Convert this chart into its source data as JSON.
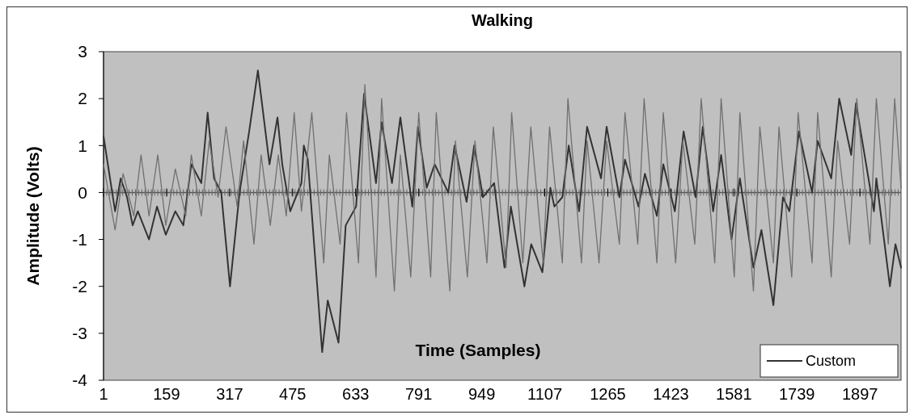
{
  "chart_data": {
    "type": "line",
    "title": "Walking",
    "xlabel": "Time (Samples)",
    "ylabel": "Amplitude (Volts)",
    "xlim": [
      1,
      2000
    ],
    "xticks": [
      1,
      159,
      317,
      475,
      633,
      791,
      949,
      1107,
      1265,
      1423,
      1581,
      1739,
      1897
    ],
    "ylim": [
      -4,
      3
    ],
    "yticks": [
      -4,
      -3,
      -2,
      -1,
      0,
      1,
      2,
      3
    ],
    "legend": "bottom right",
    "marker": "none",
    "line_style": "solid",
    "series": [
      {
        "name": "Custom",
        "color": "#333333",
        "x": [
          1,
          10,
          30,
          44,
          60,
          74,
          87,
          115,
          135,
          157,
          181,
          201,
          221,
          246,
          262,
          278,
          296,
          318,
          342,
          366,
          388,
          417,
          437,
          449,
          469,
          497,
          503,
          513,
          549,
          563,
          590,
          608,
          634,
          654,
          684,
          698,
          724,
          745,
          775,
          789,
          811,
          831,
          865,
          881,
          911,
          930,
          952,
          980,
          1006,
          1022,
          1056,
          1073,
          1101,
          1121,
          1131,
          1151,
          1167,
          1193,
          1213,
          1248,
          1262,
          1294,
          1308,
          1342,
          1358,
          1388,
          1404,
          1433,
          1455,
          1485,
          1503,
          1529,
          1549,
          1575,
          1596,
          1630,
          1650,
          1680,
          1704,
          1720,
          1744,
          1777,
          1791,
          1825,
          1845,
          1875,
          1887,
          1932,
          1938,
          1972,
          1986,
          2000
        ],
        "values": [
          1.2,
          0.7,
          -0.4,
          0.3,
          -0.1,
          -0.7,
          -0.4,
          -1.0,
          -0.3,
          -0.9,
          -0.4,
          -0.7,
          0.6,
          0.2,
          1.7,
          0.3,
          0.0,
          -2.0,
          0.0,
          1.3,
          2.6,
          0.6,
          1.6,
          0.6,
          -0.4,
          0.2,
          1.0,
          0.7,
          -3.4,
          -2.3,
          -3.2,
          -0.7,
          -0.3,
          2.1,
          0.2,
          1.5,
          0.2,
          1.6,
          -0.3,
          1.4,
          0.1,
          0.6,
          0.0,
          1.0,
          -0.2,
          1.0,
          -0.1,
          0.2,
          -1.6,
          -0.3,
          -2.0,
          -1.1,
          -1.7,
          0.1,
          -0.3,
          -0.1,
          1.0,
          -0.4,
          1.4,
          0.3,
          1.4,
          -0.1,
          0.7,
          -0.3,
          0.4,
          -0.5,
          0.6,
          -0.4,
          1.3,
          -0.1,
          1.4,
          -0.4,
          0.8,
          -1.0,
          0.3,
          -1.6,
          -0.8,
          -2.4,
          -0.1,
          -0.4,
          1.3,
          0.0,
          1.1,
          0.3,
          2.0,
          0.8,
          1.9,
          -0.4,
          0.3,
          -2.0,
          -1.1,
          -1.6
        ]
      },
      {
        "color": "#707070",
        "x": [
          1,
          30,
          50,
          77,
          95,
          115,
          137,
          157,
          181,
          207,
          221,
          246,
          266,
          288,
          308,
          336,
          352,
          378,
          396,
          419,
          439,
          459,
          479,
          497,
          523,
          553,
          567,
          594,
          610,
          640,
          656,
          684,
          698,
          730,
          745,
          771,
          791,
          821,
          835,
          869,
          883,
          913,
          932,
          962,
          978,
          1010,
          1024,
          1052,
          1072,
          1103,
          1119,
          1151,
          1165,
          1199,
          1213,
          1243,
          1262,
          1294,
          1308,
          1340,
          1356,
          1388,
          1404,
          1435,
          1453,
          1483,
          1499,
          1533,
          1549,
          1582,
          1596,
          1630,
          1646,
          1680,
          1694,
          1726,
          1742,
          1777,
          1791,
          1825,
          1841,
          1871,
          1889,
          1922,
          1938,
          1968,
          1984,
          2000
        ],
        "values": [
          0.6,
          -0.8,
          0.4,
          -0.5,
          0.8,
          -0.5,
          0.8,
          -0.7,
          0.5,
          -0.5,
          0.8,
          -0.5,
          1.1,
          -0.1,
          1.4,
          -0.3,
          1.1,
          -1.1,
          0.8,
          -0.7,
          0.8,
          -0.5,
          1.7,
          -0.4,
          1.7,
          -1.5,
          0.8,
          -1.1,
          1.7,
          -1.5,
          2.3,
          -1.8,
          2.0,
          -2.1,
          0.8,
          -1.8,
          1.7,
          -1.8,
          1.7,
          -2.1,
          1.1,
          -1.8,
          1.1,
          -1.5,
          1.4,
          -1.6,
          1.7,
          -1.5,
          1.4,
          -1.5,
          1.4,
          -1.5,
          2.0,
          -1.5,
          1.1,
          -1.5,
          1.1,
          -1.1,
          1.7,
          -1.1,
          2.0,
          -1.5,
          1.7,
          -1.5,
          1.1,
          -1.1,
          2.0,
          -1.5,
          2.0,
          -1.8,
          1.7,
          -2.1,
          1.4,
          -1.5,
          1.4,
          -1.8,
          1.7,
          -1.5,
          1.7,
          -1.8,
          1.1,
          -1.1,
          2.0,
          -1.1,
          2.0,
          -1.1,
          2.0,
          0.1
        ]
      }
    ]
  }
}
